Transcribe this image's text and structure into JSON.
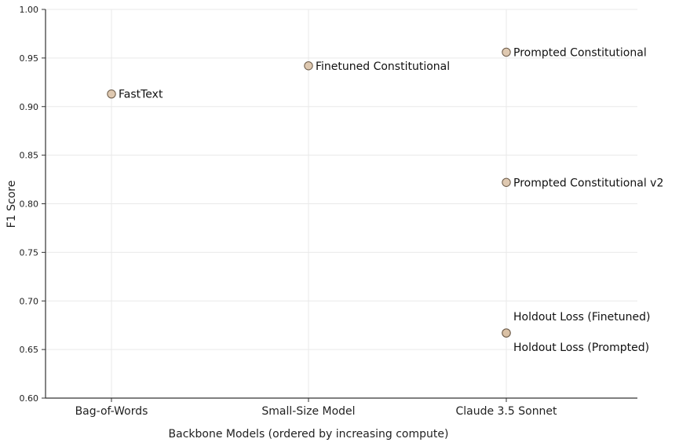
{
  "chart_data": {
    "type": "scatter",
    "title": "",
    "xlabel": "Backbone Models (ordered by increasing compute)",
    "ylabel": "F1 Score",
    "categories": [
      "Bag-of-Words",
      "Small-Size Model",
      "Claude 3.5 Sonnet"
    ],
    "ylim": [
      0.6,
      1.0
    ],
    "yticks": [
      "0.60",
      "0.65",
      "0.70",
      "0.75",
      "0.80",
      "0.85",
      "0.90",
      "0.95",
      "1.00"
    ],
    "grid": true,
    "points": [
      {
        "category": "Bag-of-Words",
        "y": 0.913,
        "label": "FastText"
      },
      {
        "category": "Small-Size Model",
        "y": 0.942,
        "label": "Finetuned Constitutional"
      },
      {
        "category": "Claude 3.5 Sonnet",
        "y": 0.956,
        "label": "Prompted Constitutional"
      },
      {
        "category": "Claude 3.5 Sonnet",
        "y": 0.822,
        "label": "Prompted Constitutional v2"
      },
      {
        "category": "Claude 3.5 Sonnet",
        "y": 0.667,
        "label": "Holdout Loss (Finetuned)"
      },
      {
        "category": "Claude 3.5 Sonnet",
        "y": 0.667,
        "label": "Holdout Loss (Prompted)"
      }
    ],
    "colors": {
      "marker_fill": "#d9c0a3",
      "marker_edge": "#6b5a48"
    }
  }
}
